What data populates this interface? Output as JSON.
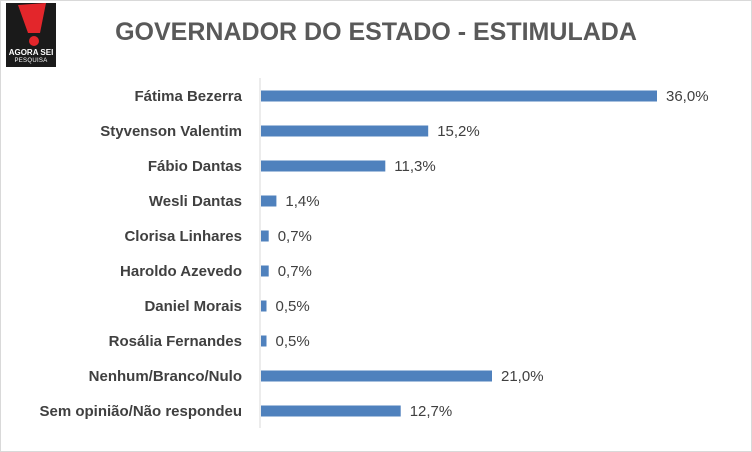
{
  "logo": {
    "brand_text": "AGORA SEI",
    "brand_sub": "PESQUISA",
    "colors": {
      "background": "#1a1a1a",
      "accent": "#e3262b"
    }
  },
  "chart_data": {
    "type": "bar",
    "orientation": "horizontal",
    "title": "GOVERNADOR DO ESTADO - ESTIMULADA",
    "categories": [
      "Fátima Bezerra",
      "Styvenson Valentim",
      "Fábio Dantas",
      "Wesli Dantas",
      "Clorisa Linhares",
      "Haroldo Azevedo",
      "Daniel Morais",
      "Rosália Fernandes",
      "Nenhum/Branco/Nulo",
      "Sem opinião/Não respondeu"
    ],
    "values": [
      36.0,
      15.2,
      11.3,
      1.4,
      0.7,
      0.7,
      0.5,
      0.5,
      21.0,
      12.7
    ],
    "value_labels": [
      "36,0%",
      "15,2%",
      "11,3%",
      "1,4%",
      "0,7%",
      "0,7%",
      "0,5%",
      "0,5%",
      "21,0%",
      "12,7%"
    ],
    "xlim": [
      0,
      40
    ],
    "grid": false,
    "legend": "none",
    "bar_color": "#4f81bd"
  }
}
